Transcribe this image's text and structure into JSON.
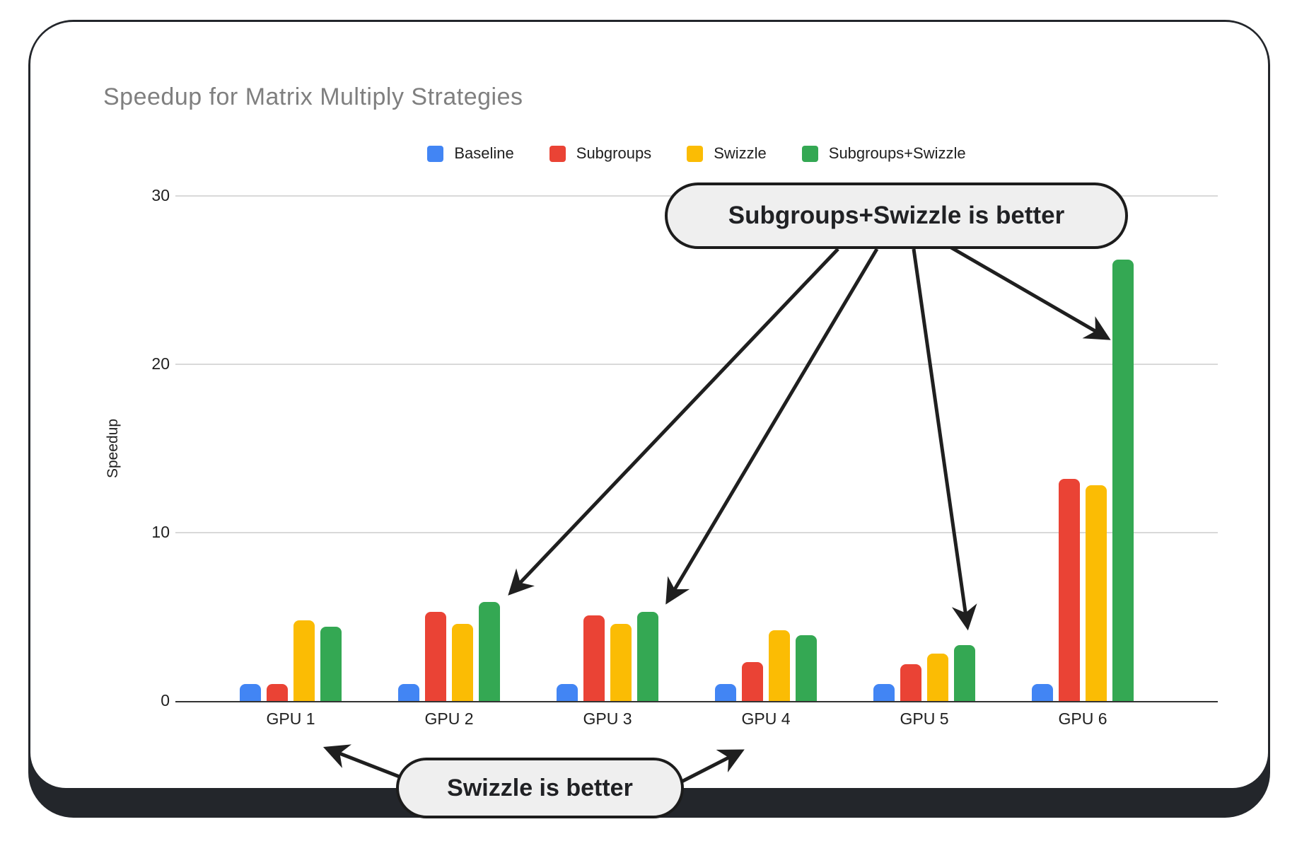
{
  "chart_data": {
    "type": "bar",
    "title": "Speedup for Matrix Multiply Strategies",
    "xlabel": "",
    "ylabel": "Speedup",
    "ylim": [
      0,
      30
    ],
    "yticks": [
      0,
      10,
      20,
      30
    ],
    "grid": true,
    "legend_position": "top",
    "categories": [
      "GPU 1",
      "GPU 2",
      "GPU 3",
      "GPU 4",
      "GPU 5",
      "GPU 6"
    ],
    "series": [
      {
        "name": "Baseline",
        "color": "#4285F4",
        "values": [
          1.0,
          1.0,
          1.0,
          1.0,
          1.0,
          1.0
        ]
      },
      {
        "name": "Subgroups",
        "color": "#EA4335",
        "values": [
          1.0,
          5.3,
          5.1,
          2.3,
          2.2,
          13.2
        ]
      },
      {
        "name": "Swizzle",
        "color": "#FBBC04",
        "values": [
          4.8,
          4.6,
          4.6,
          4.2,
          2.8,
          12.8
        ]
      },
      {
        "name": "Subgroups+Swizzle",
        "color": "#34A853",
        "values": [
          4.4,
          5.9,
          5.3,
          3.9,
          3.3,
          26.2
        ]
      }
    ],
    "annotations": [
      {
        "text": "Subgroups+Swizzle is better",
        "points_to": [
          "GPU 2 Subgroups+Swizzle bar",
          "GPU 3 Subgroups+Swizzle bar",
          "GPU 5 Subgroups+Swizzle bar",
          "GPU 6 Subgroups+Swizzle bar"
        ]
      },
      {
        "text": "Swizzle is better",
        "points_to": [
          "GPU 1 group",
          "GPU 4 group"
        ]
      }
    ]
  },
  "style": {
    "frame_color": "#23262b",
    "pill_fill": "#efefef",
    "pill_border": "#1c1c1c",
    "arrow_color": "#1f1f1f",
    "title_color": "#7f7f7f"
  }
}
